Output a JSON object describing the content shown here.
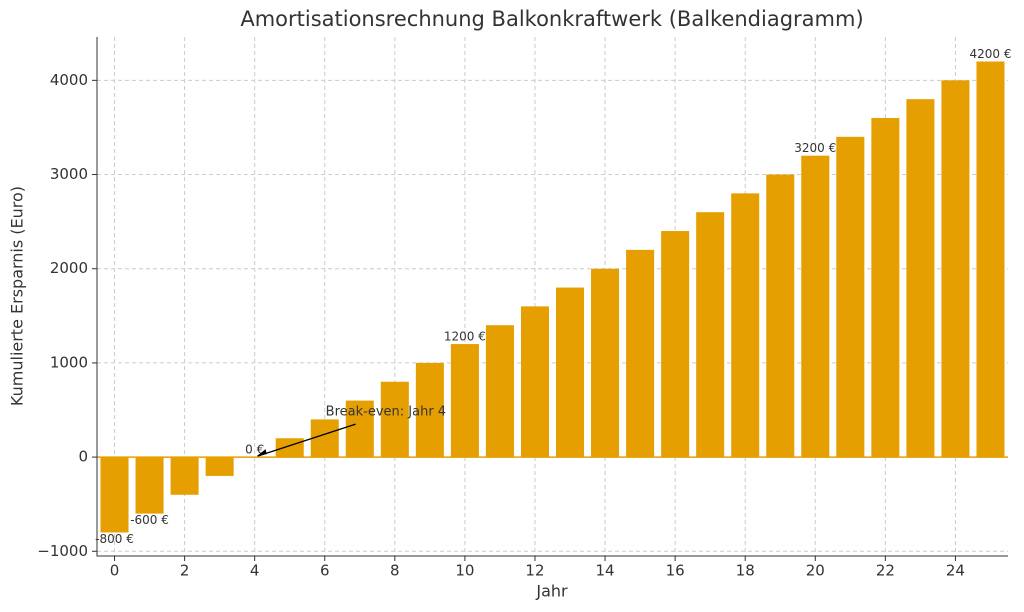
{
  "chart_data": {
    "type": "bar",
    "title": "Amortisationsrechnung Balkonkraftwerk (Balkendiagramm)",
    "xlabel": "Jahr",
    "ylabel": "Kumulierte Ersparnis (Euro)",
    "x": [
      0,
      1,
      2,
      3,
      4,
      5,
      6,
      7,
      8,
      9,
      10,
      11,
      12,
      13,
      14,
      15,
      16,
      17,
      18,
      19,
      20,
      21,
      22,
      23,
      24,
      25
    ],
    "values": [
      -800,
      -600,
      -400,
      -200,
      0,
      200,
      400,
      600,
      800,
      1000,
      1200,
      1400,
      1600,
      1800,
      2000,
      2200,
      2400,
      2600,
      2800,
      3000,
      3200,
      3400,
      3600,
      3800,
      4000,
      4200
    ],
    "value_labels": [
      "-800 €",
      "-600 €",
      null,
      null,
      "0 €",
      null,
      null,
      null,
      null,
      null,
      "1200 €",
      null,
      null,
      null,
      null,
      null,
      null,
      null,
      null,
      null,
      "3200 €",
      null,
      null,
      null,
      null,
      "4200 €"
    ],
    "color": "#e69f00",
    "xlim": [
      -0.5,
      25.5
    ],
    "xticks": [
      0,
      2,
      4,
      6,
      8,
      10,
      12,
      14,
      16,
      18,
      20,
      22,
      24
    ],
    "ylim": [
      -1050,
      4460
    ],
    "yticks": [
      {
        "value": -1000,
        "label": "−1000"
      },
      0,
      1000,
      2000,
      3000,
      4000
    ],
    "grid": true,
    "annotation": {
      "text": "Break-even: Jahr 4",
      "x": 4,
      "y": 0
    }
  }
}
